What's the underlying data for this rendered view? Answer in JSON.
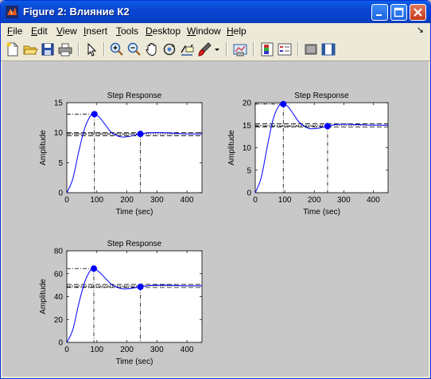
{
  "window": {
    "title": "Figure 2: Влияние К2"
  },
  "menu": [
    "File",
    "Edit",
    "View",
    "Insert",
    "Tools",
    "Desktop",
    "Window",
    "Help"
  ],
  "toolbar_icons": [
    "new-file-icon",
    "open-folder-icon",
    "save-icon",
    "print-icon",
    "pointer-icon",
    "zoom-in-icon",
    "zoom-out-icon",
    "pan-hand-icon",
    "rotate-3d-icon",
    "data-cursor-icon",
    "brush-icon",
    "brush-dropdown-icon",
    "link-plot-icon",
    "colorbar-icon",
    "legend-icon",
    "hide-plot-tools-icon",
    "show-plot-tools-icon"
  ],
  "chart_data": [
    {
      "type": "line",
      "title": "Step Response",
      "xlabel": "Time (sec)",
      "ylabel": "Amplitude",
      "xlim": [
        0,
        450
      ],
      "ylim": [
        0,
        15
      ],
      "xticks": [
        0,
        100,
        200,
        300,
        400
      ],
      "yticks": [
        0,
        5,
        10,
        15
      ],
      "final_value": 9.8,
      "band": [
        0.2,
        -0.3
      ],
      "peak": {
        "t": 92,
        "y": 13.1
      },
      "settling": {
        "t": 245,
        "y": 9.8
      },
      "series": [
        {
          "x": [
            0,
            20,
            40,
            60,
            80,
            92,
            110,
            130,
            150,
            180,
            210,
            245,
            280,
            320,
            360,
            400,
            450
          ],
          "y": [
            0,
            2.3,
            6.9,
            10.8,
            12.9,
            13.1,
            12.5,
            11.2,
            10.0,
            9.3,
            9.4,
            9.8,
            10.0,
            10.0,
            9.9,
            9.8,
            9.8
          ]
        }
      ],
      "color": "#0000ff"
    },
    {
      "type": "line",
      "title": "Step Response",
      "xlabel": "Time (sec)",
      "ylabel": "Amplitude",
      "xlim": [
        0,
        450
      ],
      "ylim": [
        0,
        20
      ],
      "xticks": [
        0,
        100,
        200,
        300,
        400
      ],
      "yticks": [
        0,
        5,
        10,
        15,
        20
      ],
      "final_value": 15,
      "band": [
        0.3,
        -0.4
      ],
      "peak": {
        "t": 95,
        "y": 19.7
      },
      "settling": {
        "t": 245,
        "y": 14.8
      },
      "series": [
        {
          "x": [
            0,
            20,
            40,
            60,
            80,
            95,
            110,
            130,
            150,
            180,
            210,
            245,
            280,
            320,
            360,
            400,
            450
          ],
          "y": [
            0,
            3.3,
            10.0,
            16.2,
            19.3,
            19.7,
            19.2,
            17.4,
            15.6,
            14.3,
            14.3,
            14.8,
            15.2,
            15.2,
            15.1,
            15.0,
            15.0
          ]
        }
      ],
      "color": "#0000ff"
    },
    {
      "type": "line",
      "title": "Step Response",
      "xlabel": "Time (sec)",
      "ylabel": "Amplitude",
      "xlim": [
        0,
        450
      ],
      "ylim": [
        0,
        80
      ],
      "xticks": [
        0,
        100,
        200,
        300,
        400
      ],
      "yticks": [
        0,
        20,
        40,
        60,
        80
      ],
      "final_value": 49.5,
      "band": [
        1.2,
        -1.5
      ],
      "peak": {
        "t": 90,
        "y": 64.5
      },
      "settling": {
        "t": 245,
        "y": 48.5
      },
      "series": [
        {
          "x": [
            0,
            20,
            40,
            60,
            80,
            90,
            110,
            130,
            150,
            180,
            210,
            245,
            280,
            320,
            360,
            400,
            450
          ],
          "y": [
            0,
            11,
            34,
            53,
            63.5,
            64.5,
            61,
            55.5,
            50.5,
            47,
            47,
            48.5,
            49.8,
            50,
            49.8,
            49.5,
            49.5
          ]
        }
      ],
      "color": "#0000ff"
    }
  ]
}
